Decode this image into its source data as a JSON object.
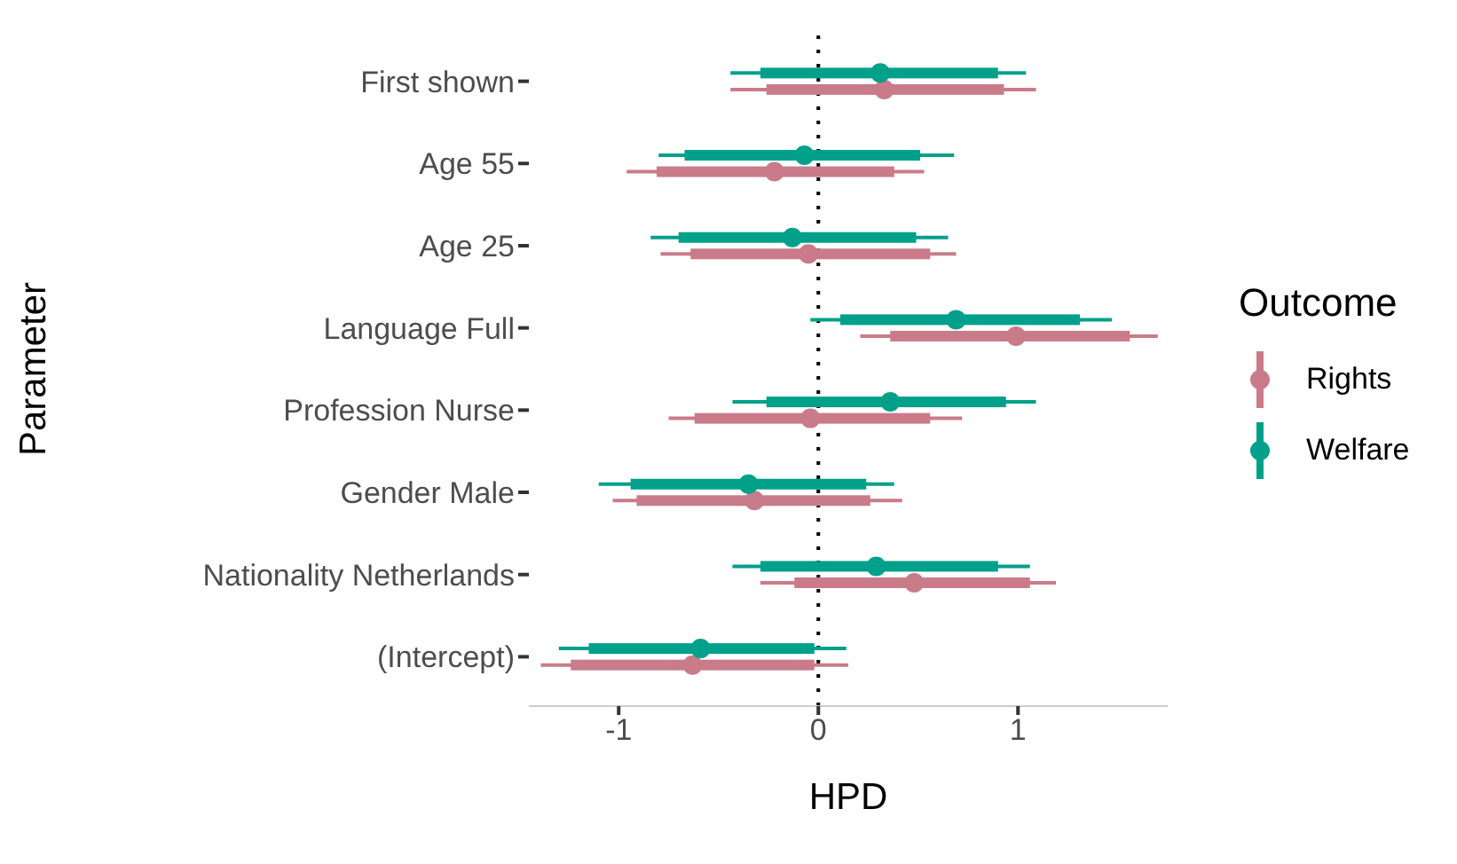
{
  "chart_data": {
    "type": "scatter",
    "orientation": "horizontal",
    "xlabel": "HPD",
    "ylabel": "Parameter",
    "legend_title": "Outcome",
    "legend": "right",
    "marker": "circle",
    "categories": [
      "First shown",
      "Age 55",
      "Age 25",
      "Language Full",
      "Profession Nurse",
      "Gender Male",
      "Nationality Netherlands",
      "(Intercept)"
    ],
    "xlim": [
      -1.45,
      1.75
    ],
    "xticks": [
      -1,
      0,
      1
    ],
    "ref_lines": [
      {
        "axis": "x",
        "value": 0,
        "color": "#000000",
        "line_style": "dotted"
      }
    ],
    "series": [
      {
        "name": "Rights",
        "color": "#c97b8a",
        "values": [
          0.33,
          -0.22,
          -0.05,
          0.99,
          -0.04,
          -0.32,
          0.48,
          -0.63
        ],
        "errors": [
          [
            -0.44,
            1.09
          ],
          [
            -0.96,
            0.53
          ],
          [
            -0.79,
            0.69
          ],
          [
            0.21,
            1.7
          ],
          [
            -0.75,
            0.72
          ],
          [
            -1.03,
            0.42
          ],
          [
            -0.29,
            1.19
          ],
          [
            -1.39,
            0.15
          ]
        ]
      },
      {
        "name": "Welfare",
        "color": "#00a08a",
        "values": [
          0.31,
          -0.07,
          -0.13,
          0.69,
          0.36,
          -0.35,
          0.29,
          -0.59
        ],
        "errors": [
          [
            -0.44,
            1.04
          ],
          [
            -0.8,
            0.68
          ],
          [
            -0.84,
            0.65
          ],
          [
            -0.04,
            1.47
          ],
          [
            -0.43,
            1.09
          ],
          [
            -1.1,
            0.38
          ],
          [
            -0.43,
            1.06
          ],
          [
            -1.3,
            0.14
          ]
        ]
      },
      {
        "type": "bar",
        "color": "#c97b8a",
        "base": [
          -0.26,
          -0.81,
          -0.64,
          0.36,
          -0.62,
          -0.91,
          -0.12,
          -1.24
        ],
        "values": [
          1.19,
          1.19,
          1.2,
          1.2,
          1.18,
          1.17,
          1.18,
          1.22
        ]
      },
      {
        "type": "bar",
        "color": "#00a08a",
        "base": [
          -0.29,
          -0.67,
          -0.7,
          0.11,
          -0.26,
          -0.94,
          -0.29,
          -1.15
        ],
        "values": [
          1.19,
          1.18,
          1.19,
          1.2,
          1.2,
          1.18,
          1.19,
          1.13
        ]
      }
    ]
  }
}
